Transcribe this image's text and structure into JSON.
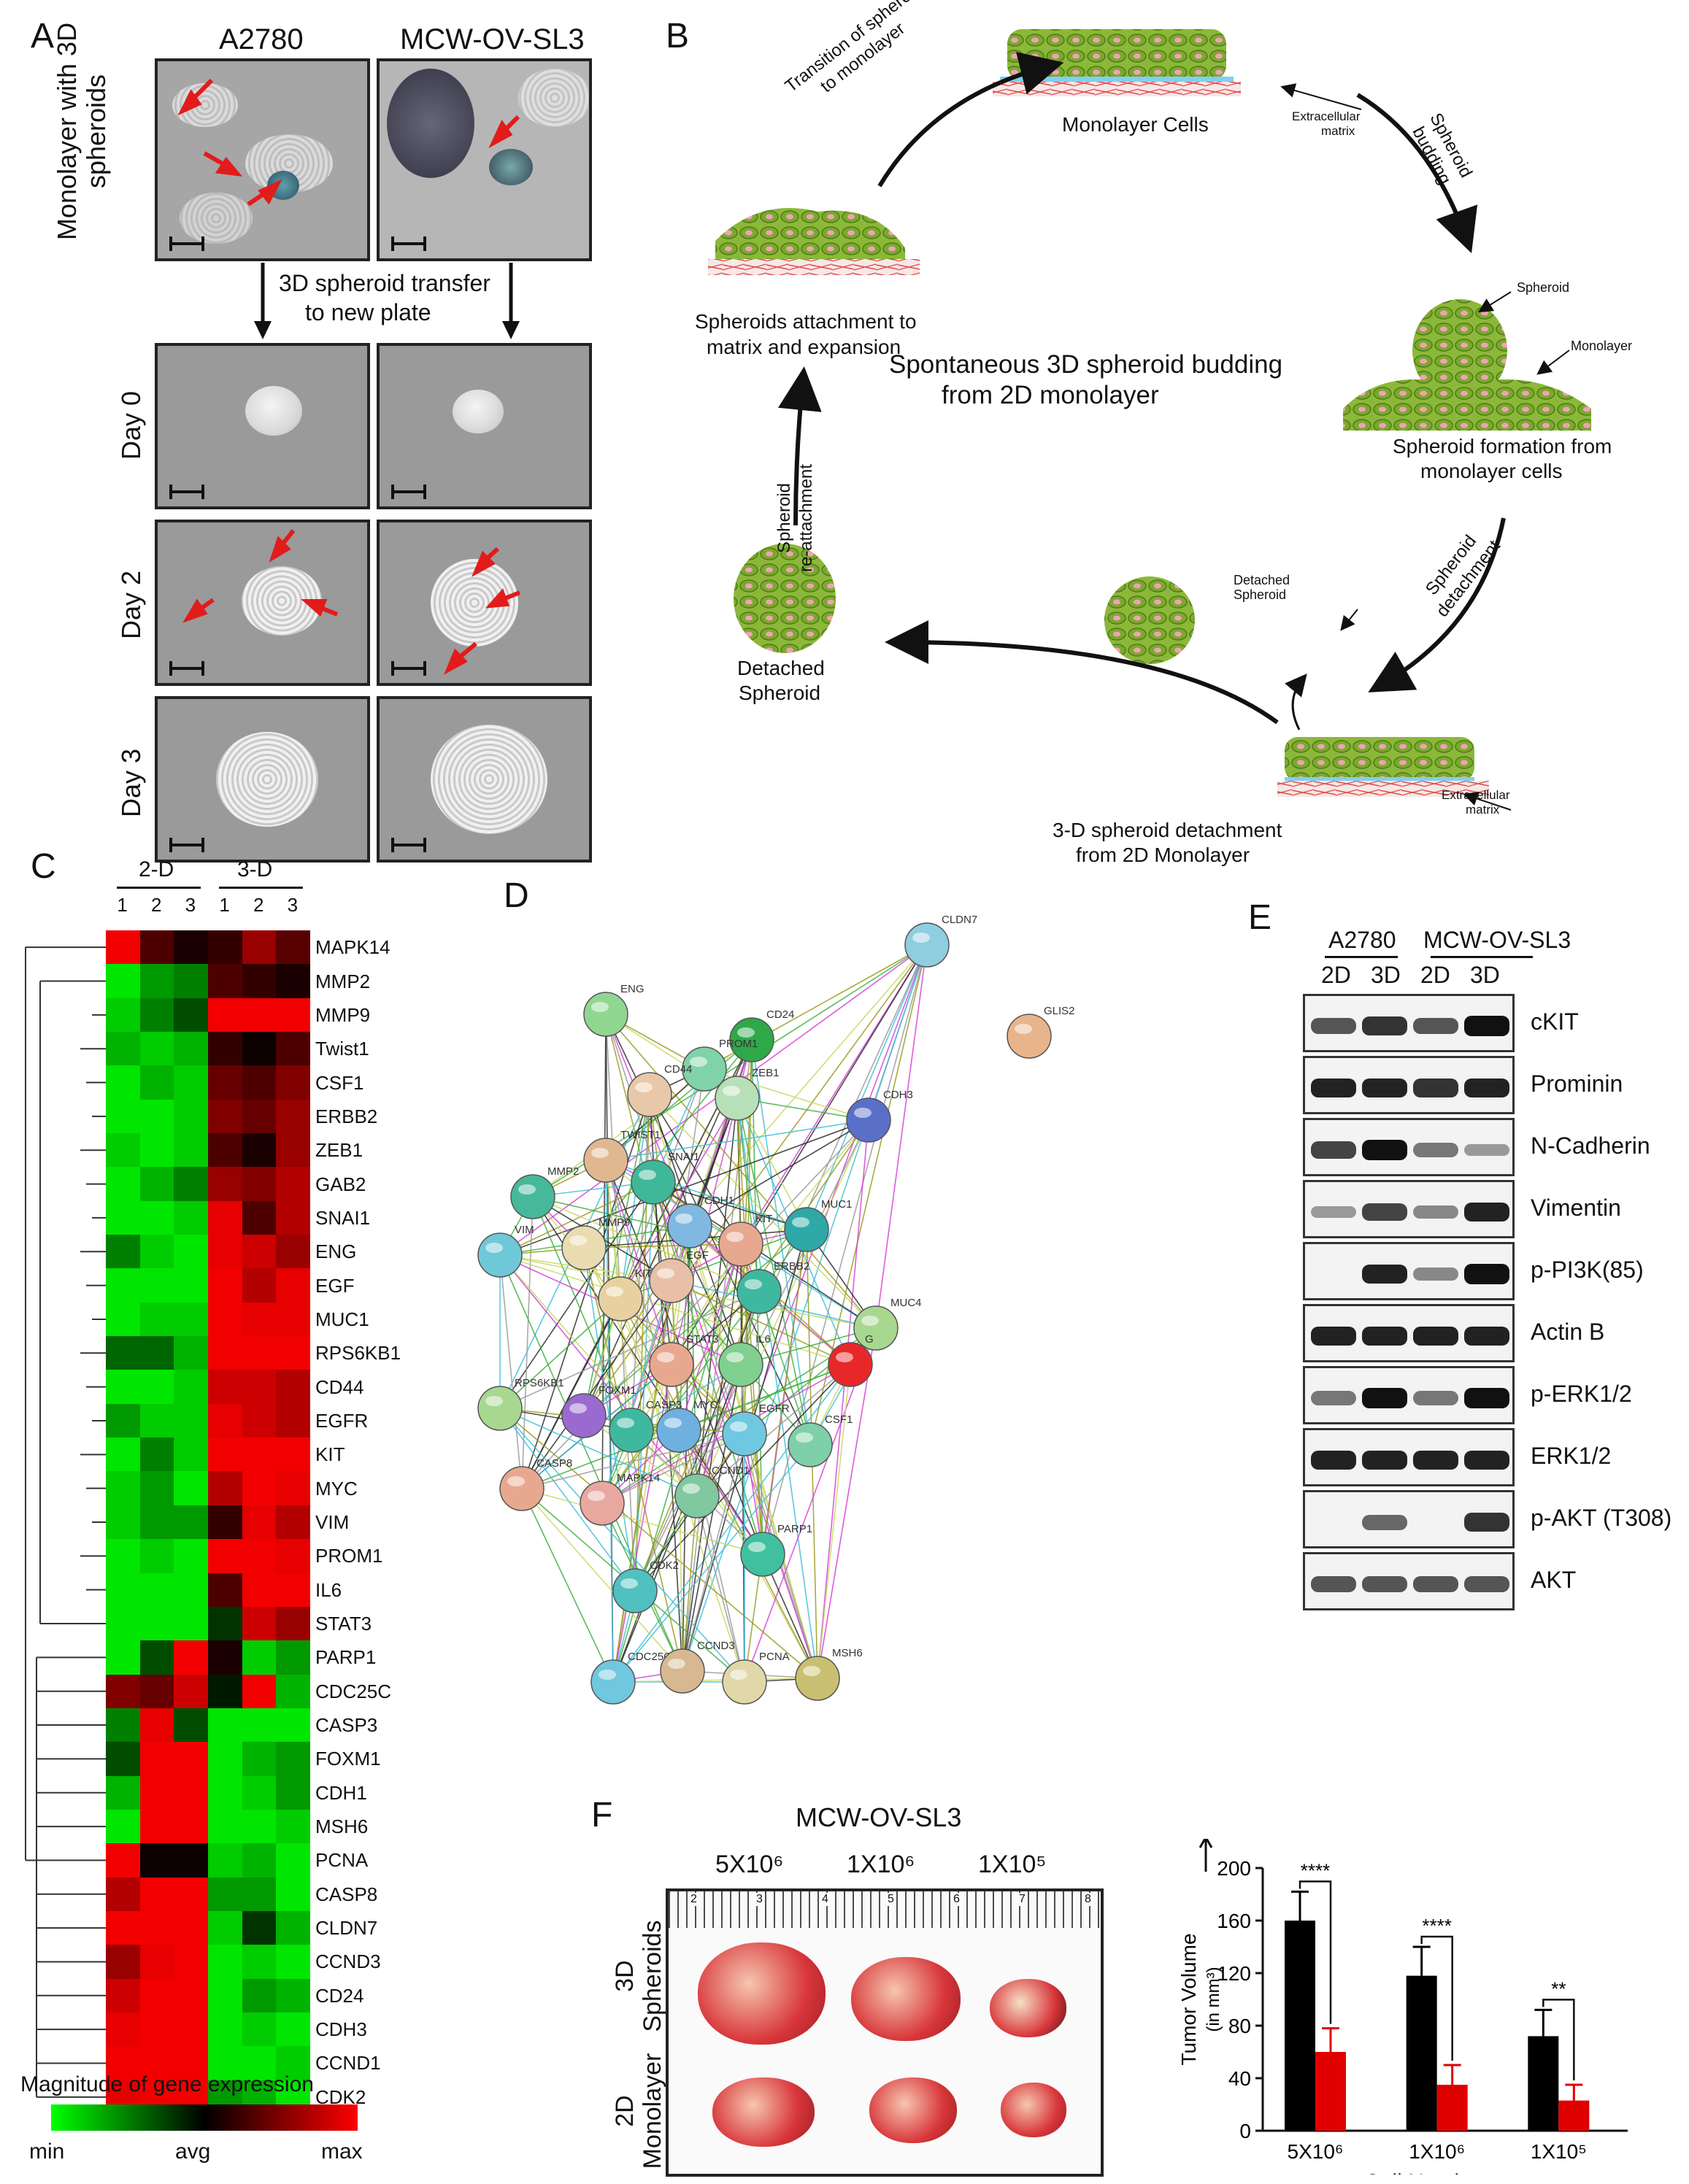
{
  "panels": {
    "a": "A",
    "b": "B",
    "c": "C",
    "d": "D",
    "e": "E",
    "f": "F"
  },
  "panelA": {
    "col1": "A2780",
    "col2": "MCW-OV-SL3",
    "rowTop": "Monolayer with 3D spheroids",
    "transfer1": "3D spheroid transfer",
    "transfer2": "to new plate",
    "days": [
      "Day 0",
      "Day 2",
      "Day 3"
    ]
  },
  "panelB": {
    "center1": "Spontaneous 3D spheroid budding",
    "center2": "from 2D monolayer",
    "monolayer": "Monolayer Cells",
    "ecm": "Extracellular",
    "ecm2": "matrix",
    "transitionArc1": "Transition of spheroids",
    "transitionArc2": "to monolayer",
    "budding1": "Spheroid",
    "budding2": "budding",
    "spheroidTag": "Spheroid",
    "monolayerTag": "Monolayer",
    "formation1": "Spheroid formation from",
    "formation2": "monolayer cells",
    "detach1": "Spheroid",
    "detach2": "detachment",
    "detachedTag1": "Detached",
    "detachedTag2": "Spheroid",
    "detachment1": "3-D spheroid detachment",
    "detachment2": "from 2D Monolayer",
    "detached1": "Detached",
    "detached2": "Spheroid",
    "reattach1": "Spheroid",
    "reattach2": "re-attachment",
    "attach1": "Spheroids attachment to",
    "attach2": "matrix and expansion"
  },
  "panelC": {
    "group1": "2-D",
    "group2": "3-D",
    "cols": [
      "1",
      "2",
      "3",
      "1",
      "2",
      "3"
    ],
    "genes": [
      "MAPK14",
      "MMP2",
      "MMP9",
      "Twist1",
      "CSF1",
      "ERBB2",
      "ZEB1",
      "GAB2",
      "SNAI1",
      "ENG",
      "EGF",
      "MUC1",
      "RPS6KB1",
      "CD44",
      "EGFR",
      "KIT",
      "MYC",
      "VIM",
      "PROM1",
      "IL6",
      "STAT3",
      "PARP1",
      "CDC25C",
      "CASP3",
      "FOXM1",
      "CDH1",
      "MSH6",
      "PCNA",
      "CASP8",
      "CLDN7",
      "CCND3",
      "CD24",
      "CDH3",
      "CCND1",
      "CDK2"
    ],
    "values": [
      [
        0.95,
        0.3,
        0.1,
        0.2,
        0.6,
        0.35
      ],
      [
        -0.9,
        -0.6,
        -0.5,
        0.3,
        0.2,
        0.1
      ],
      [
        -0.8,
        -0.5,
        -0.3,
        0.95,
        0.95,
        0.95
      ],
      [
        -0.7,
        -0.8,
        -0.7,
        0.2,
        0.05,
        0.3
      ],
      [
        -0.9,
        -0.7,
        -0.8,
        0.4,
        0.3,
        0.5
      ],
      [
        -0.9,
        -0.9,
        -0.8,
        0.5,
        0.4,
        0.6
      ],
      [
        -0.8,
        -0.9,
        -0.8,
        0.3,
        0.1,
        0.6
      ],
      [
        -0.9,
        -0.7,
        -0.5,
        0.6,
        0.5,
        0.7
      ],
      [
        -0.9,
        -0.9,
        -0.8,
        0.9,
        0.3,
        0.7
      ],
      [
        -0.5,
        -0.8,
        -0.9,
        0.9,
        0.8,
        0.6
      ],
      [
        -0.9,
        -0.9,
        -0.9,
        0.95,
        0.7,
        0.9
      ],
      [
        -0.9,
        -0.8,
        -0.8,
        0.95,
        0.9,
        0.9
      ],
      [
        -0.4,
        -0.4,
        -0.7,
        0.95,
        0.95,
        0.95
      ],
      [
        -0.9,
        -0.9,
        -0.8,
        0.8,
        0.8,
        0.7
      ],
      [
        -0.6,
        -0.8,
        -0.8,
        0.9,
        0.8,
        0.7
      ],
      [
        -0.9,
        -0.5,
        -0.8,
        0.95,
        0.95,
        0.95
      ],
      [
        -0.8,
        -0.6,
        -0.9,
        0.7,
        0.95,
        0.9
      ],
      [
        -0.8,
        -0.6,
        -0.6,
        0.2,
        0.9,
        0.7
      ],
      [
        -0.9,
        -0.8,
        -0.9,
        0.95,
        0.95,
        0.9
      ],
      [
        -0.9,
        -0.9,
        -0.9,
        0.3,
        0.95,
        0.95
      ],
      [
        -0.9,
        -0.9,
        -0.9,
        -0.2,
        0.8,
        0.6
      ],
      [
        -0.9,
        -0.3,
        0.95,
        0.1,
        -0.8,
        -0.6
      ],
      [
        0.5,
        0.4,
        0.8,
        -0.1,
        0.95,
        -0.7
      ],
      [
        -0.5,
        0.9,
        -0.3,
        -0.9,
        -0.9,
        -0.9
      ],
      [
        -0.3,
        0.95,
        0.95,
        -0.9,
        -0.7,
        -0.6
      ],
      [
        -0.7,
        0.95,
        0.95,
        -0.9,
        -0.8,
        -0.6
      ],
      [
        -0.9,
        0.95,
        0.95,
        -0.9,
        -0.9,
        -0.8
      ],
      [
        0.95,
        0.05,
        0.05,
        -0.8,
        -0.7,
        -0.9
      ],
      [
        0.7,
        0.95,
        0.95,
        -0.6,
        -0.6,
        -0.9
      ],
      [
        0.95,
        0.95,
        0.95,
        -0.8,
        -0.2,
        -0.7
      ],
      [
        0.6,
        0.9,
        0.95,
        -0.9,
        -0.8,
        -0.9
      ],
      [
        0.8,
        0.95,
        0.95,
        -0.9,
        -0.6,
        -0.7
      ],
      [
        0.9,
        0.95,
        0.95,
        -0.9,
        -0.8,
        -0.9
      ],
      [
        0.95,
        0.95,
        0.95,
        -0.9,
        -0.9,
        -0.8
      ],
      [
        0.9,
        0.95,
        0.95,
        -0.6,
        -0.7,
        -0.9
      ]
    ],
    "legendTitle": "Magnitude of gene expression",
    "legendMin": "min",
    "legendAvg": "avg",
    "legendMax": "max",
    "colors": {
      "low": "#00ff00",
      "mid": "#000000",
      "high": "#ff0000"
    }
  },
  "panelD": {
    "nodes": [
      {
        "id": "CLDN7",
        "c": "#8fcde0"
      },
      {
        "id": "GLIS2",
        "c": "#e8b48c"
      },
      {
        "id": "ENG",
        "c": "#90d690"
      },
      {
        "id": "CD24",
        "c": "#2fa84a"
      },
      {
        "id": "PROM1",
        "c": "#7fd3a7"
      },
      {
        "id": "CD44",
        "c": "#e8c8a8"
      },
      {
        "id": "ZEB1",
        "c": "#b8e0b8"
      },
      {
        "id": "CDH3",
        "c": "#5a6fc8"
      },
      {
        "id": "TWIST1",
        "c": "#e0b890"
      },
      {
        "id": "SNAI1",
        "c": "#3fb89a"
      },
      {
        "id": "MMP2",
        "c": "#47b89a"
      },
      {
        "id": "CDH1",
        "c": "#7fb8e0"
      },
      {
        "id": "KIT",
        "c": "#e8a890"
      },
      {
        "id": "MUC1",
        "c": "#2fa8a8"
      },
      {
        "id": "VIM",
        "c": "#6fc8d8"
      },
      {
        "id": "MMP9",
        "c": "#e8dcb0"
      },
      {
        "id": "KITLG",
        "c": "#e8d0a0"
      },
      {
        "id": "EGF",
        "c": "#e8c0a8"
      },
      {
        "id": "ERBB2",
        "c": "#3fb8a0"
      },
      {
        "id": "MUC4",
        "c": "#a8d890"
      },
      {
        "id": "G",
        "c": "#e82828"
      },
      {
        "id": "STAT3",
        "c": "#e8a890"
      },
      {
        "id": "IL6",
        "c": "#80d090"
      },
      {
        "id": "RPS6KB1",
        "c": "#a8d890"
      },
      {
        "id": "FOXM1",
        "c": "#9a6ad0"
      },
      {
        "id": "CASP3",
        "c": "#3fb8a0"
      },
      {
        "id": "MYC",
        "c": "#6fb0e0"
      },
      {
        "id": "EGFR",
        "c": "#6fc8e0"
      },
      {
        "id": "CSF1",
        "c": "#7fd0a8"
      },
      {
        "id": "CASP8",
        "c": "#e8a890"
      },
      {
        "id": "MAPK14",
        "c": "#e8a8a0"
      },
      {
        "id": "CCND1",
        "c": "#80c8a0"
      },
      {
        "id": "PARP1",
        "c": "#40c0a0"
      },
      {
        "id": "CDK2",
        "c": "#50c0c0"
      },
      {
        "id": "CDC25C",
        "c": "#6fc8e0"
      },
      {
        "id": "CCND3",
        "c": "#d8b890"
      },
      {
        "id": "PCNA",
        "c": "#e0d8a8"
      },
      {
        "id": "MSH6",
        "c": "#c8c070"
      }
    ]
  },
  "panelE": {
    "cell1": "A2780",
    "cell2": "MCW-OV-SL3",
    "lanes": [
      "2D",
      "3D",
      "2D",
      "3D"
    ],
    "blots": [
      {
        "label": "cKIT",
        "bands": [
          0.6,
          0.8,
          0.6,
          1.0
        ]
      },
      {
        "label": "Prominin",
        "bands": [
          0.9,
          0.9,
          0.8,
          0.9
        ]
      },
      {
        "label": "N-Cadherin",
        "bands": [
          0.7,
          1.0,
          0.4,
          0.2
        ]
      },
      {
        "label": "Vimentin",
        "bands": [
          0.2,
          0.7,
          0.3,
          0.9
        ]
      },
      {
        "label": "p-PI3K(85)",
        "bands": [
          0.0,
          0.9,
          0.3,
          1.0
        ]
      },
      {
        "label": "Actin B",
        "bands": [
          0.9,
          0.9,
          0.9,
          0.9
        ]
      },
      {
        "label": "p-ERK1/2",
        "bands": [
          0.4,
          1.0,
          0.4,
          1.0
        ]
      },
      {
        "label": "ERK1/2",
        "bands": [
          0.9,
          0.9,
          0.9,
          0.9
        ]
      },
      {
        "label": "p-AKT (T308)",
        "bands": [
          0.0,
          0.5,
          0.0,
          0.8
        ]
      },
      {
        "label": "AKT",
        "bands": [
          0.6,
          0.6,
          0.6,
          0.6
        ]
      }
    ]
  },
  "panelF": {
    "title": "MCW-OV-SL3",
    "doses": [
      "5X10⁶",
      "1X10⁶",
      "1X10⁵"
    ],
    "row1a": "3D",
    "row1b": "Spheroids",
    "row2a": "2D",
    "row2b": "Monolayer",
    "ruler": [
      "2",
      "3",
      "4",
      "5",
      "6",
      "7",
      "8"
    ]
  },
  "chart_data": {
    "type": "bar",
    "categories": [
      "5X10⁶",
      "1X10⁶",
      "1X10⁵"
    ],
    "series": [
      {
        "values": [
          160,
          118,
          72
        ],
        "errors": [
          22,
          22,
          20
        ],
        "color": "#000000"
      },
      {
        "values": [
          60,
          35,
          23
        ],
        "errors": [
          18,
          15,
          12
        ],
        "color": "#e00000"
      }
    ],
    "ylabel1": "Tumor Volume",
    "ylabel2": "(in mm³)",
    "xlabel": "Cell Numbers",
    "ylim": [
      0,
      200
    ],
    "yticks": [
      "0",
      "40",
      "80",
      "120",
      "160",
      "200"
    ],
    "significance": [
      "****",
      "****",
      "**"
    ]
  }
}
